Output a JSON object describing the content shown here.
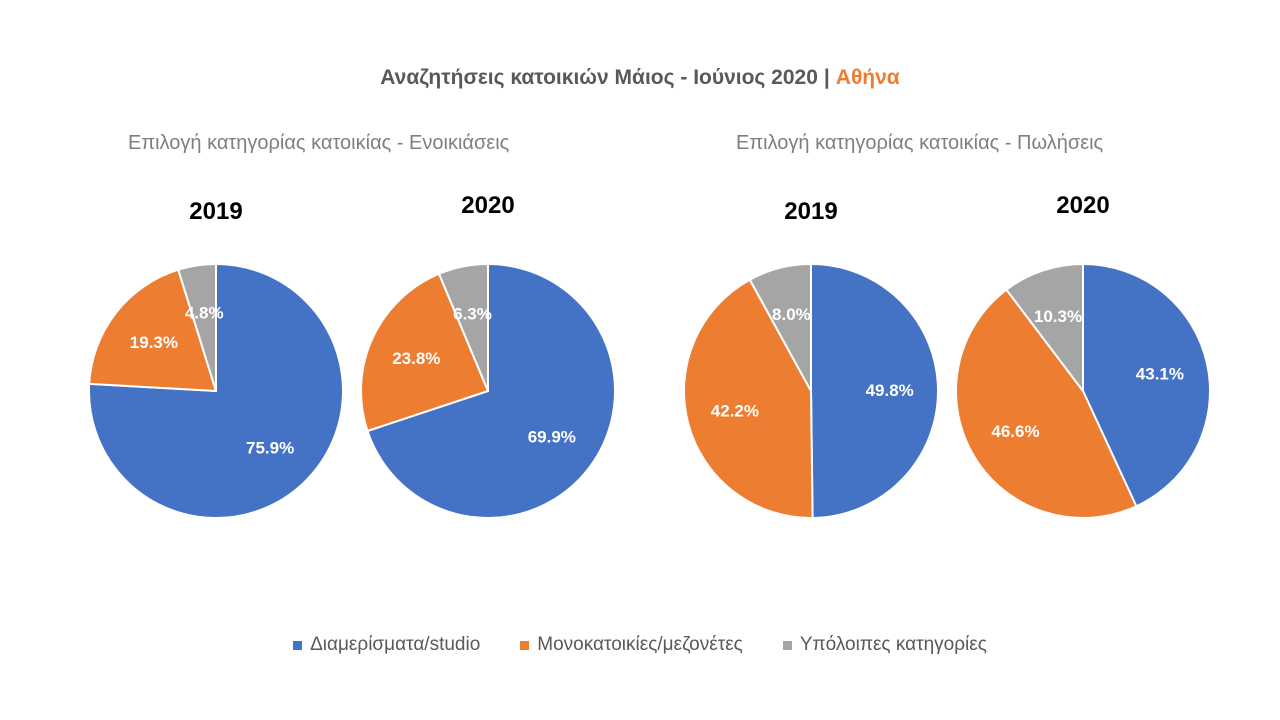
{
  "title": {
    "main": "Αναζητήσεις  κατοικιών Μάιος - Ιούνιος 2020",
    "separator": "|",
    "city": "Αθήνα"
  },
  "groups": [
    {
      "title": "Επιλογή κατηγορίας κατοικίας - Ενοικιάσεις"
    },
    {
      "title": "Επιλογή κατηγορίας κατοικίας - Πωλήσεις"
    }
  ],
  "legend": [
    {
      "label": "Διαμερίσματα/studio",
      "color": "#4472C4"
    },
    {
      "label": "Μονοκατοικίες/μεζονέτες",
      "color": "#ED7D31"
    },
    {
      "label": "Υπόλοιπες κατηγορίες",
      "color": "#A5A5A5"
    }
  ],
  "chart_data": [
    {
      "type": "pie",
      "group": "Επιλογή κατηγορίας κατοικίας - Ενοικιάσεις",
      "title": "2019",
      "categories": [
        "Διαμερίσματα/studio",
        "Μονοκατοικίες/μεζονέτες",
        "Υπόλοιπες κατηγορίες"
      ],
      "values": [
        75.9,
        19.3,
        4.8
      ],
      "labels": [
        "75.9%",
        "19.3%",
        "4.8%"
      ]
    },
    {
      "type": "pie",
      "group": "Επιλογή κατηγορίας κατοικίας - Ενοικιάσεις",
      "title": "2020",
      "categories": [
        "Διαμερίσματα/studio",
        "Μονοκατοικίες/μεζονέτες",
        "Υπόλοιπες κατηγορίες"
      ],
      "values": [
        69.9,
        23.8,
        6.3
      ],
      "labels": [
        "69.9%",
        "23.8%",
        "6.3%"
      ]
    },
    {
      "type": "pie",
      "group": "Επιλογή κατηγορίας κατοικίας - Πωλήσεις",
      "title": "2019",
      "categories": [
        "Διαμερίσματα/studio",
        "Μονοκατοικίες/μεζονέτες",
        "Υπόλοιπες κατηγορίες"
      ],
      "values": [
        49.8,
        42.2,
        8.0
      ],
      "labels": [
        "49.8%",
        "42.2%",
        "8.0%"
      ]
    },
    {
      "type": "pie",
      "group": "Επιλογή κατηγορίας κατοικίας - Πωλήσεις",
      "title": "2020",
      "categories": [
        "Διαμερίσματα/studio",
        "Μονοκατοικίες/μεζονέτες",
        "Υπόλοιπες κατηγορίες"
      ],
      "values": [
        43.1,
        46.6,
        10.3
      ],
      "labels": [
        "43.1%",
        "46.6%",
        "10.3%"
      ]
    }
  ]
}
